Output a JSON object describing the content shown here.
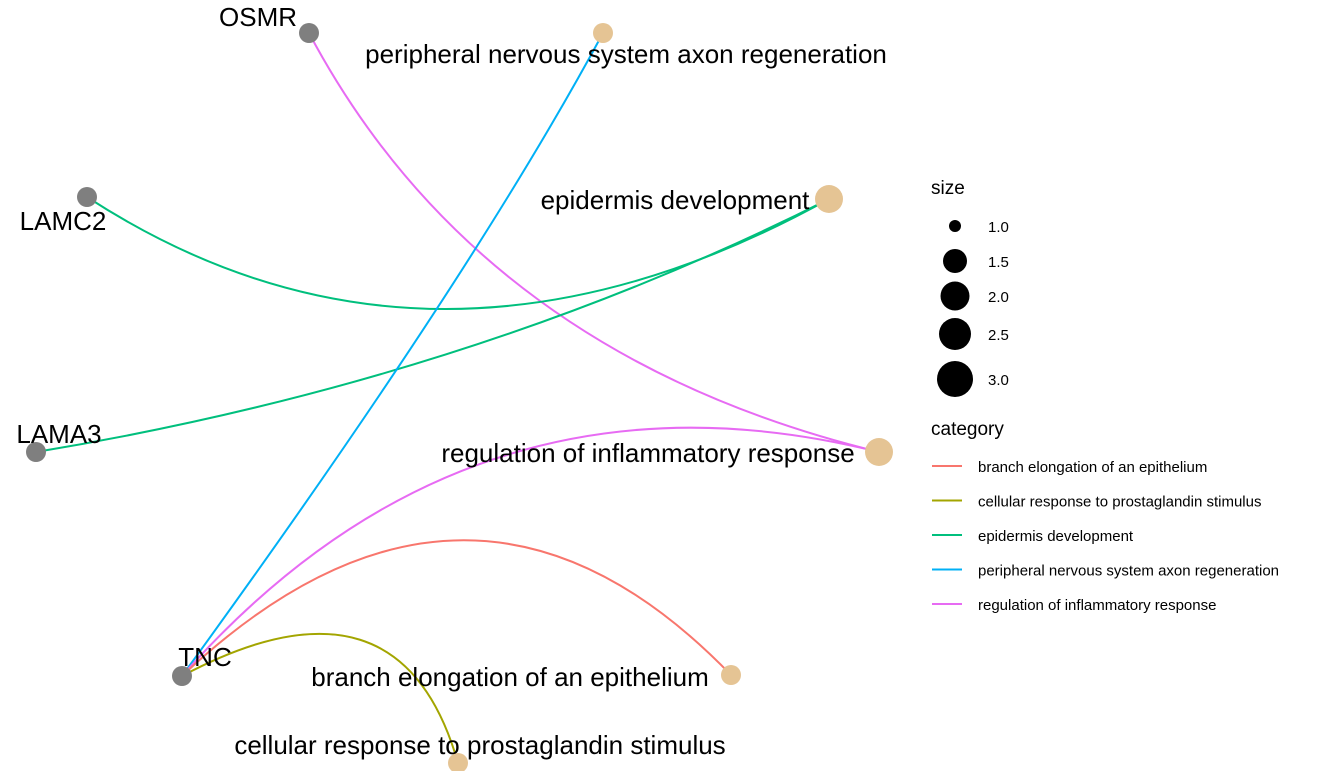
{
  "colors": {
    "gene_node": "#7f7f7f",
    "term_node": "#e5c494",
    "branch elongation of an epithelium": "#f8766d",
    "cellular response to prostaglandin stimulus": "#a3a500",
    "epidermis development": "#00bf7d",
    "peripheral nervous system axon regeneration": "#00b0f6",
    "regulation of inflammatory response": "#e76bf3"
  },
  "genes": [
    {
      "id": "OSMR",
      "label": "OSMR",
      "size": 1
    },
    {
      "id": "LAMC2",
      "label": "LAMC2",
      "size": 1
    },
    {
      "id": "LAMA3",
      "label": "LAMA3",
      "size": 1
    },
    {
      "id": "TNC",
      "label": "TNC",
      "size": 1
    }
  ],
  "terms": [
    {
      "id": "peripheral nervous system axon regeneration",
      "label": "peripheral nervous system axon regeneration",
      "size": 1
    },
    {
      "id": "epidermis development",
      "label": "epidermis development",
      "size": 2
    },
    {
      "id": "regulation of inflammatory response",
      "label": "regulation of inflammatory response",
      "size": 2
    },
    {
      "id": "branch elongation of an epithelium",
      "label": "branch elongation of an epithelium",
      "size": 1
    },
    {
      "id": "cellular response to prostaglandin stimulus",
      "label": "cellular response to prostaglandin stimulus",
      "size": 1
    }
  ],
  "edges": [
    {
      "gene": "OSMR",
      "term": "regulation of inflammatory response",
      "category": "regulation of inflammatory response"
    },
    {
      "gene": "LAMC2",
      "term": "epidermis development",
      "category": "epidermis development"
    },
    {
      "gene": "LAMA3",
      "term": "epidermis development",
      "category": "epidermis development"
    },
    {
      "gene": "TNC",
      "term": "peripheral nervous system axon regeneration",
      "category": "peripheral nervous system axon regeneration"
    },
    {
      "gene": "TNC",
      "term": "regulation of inflammatory response",
      "category": "regulation of inflammatory response"
    },
    {
      "gene": "TNC",
      "term": "branch elongation of an epithelium",
      "category": "branch elongation of an epithelium"
    },
    {
      "gene": "TNC",
      "term": "cellular response to prostaglandin stimulus",
      "category": "cellular response to prostaglandin stimulus"
    }
  ],
  "legend": {
    "size_title": "size",
    "size_items": [
      {
        "label": "1.0",
        "value": 1.0
      },
      {
        "label": "1.5",
        "value": 1.5
      },
      {
        "label": "2.0",
        "value": 2.0
      },
      {
        "label": "2.5",
        "value": 2.5
      },
      {
        "label": "3.0",
        "value": 3.0
      }
    ],
    "category_title": "category",
    "category_items": [
      "branch elongation of an epithelium",
      "cellular response to prostaglandin stimulus",
      "epidermis development",
      "peripheral nervous system axon regeneration",
      "regulation of inflammatory response"
    ]
  }
}
